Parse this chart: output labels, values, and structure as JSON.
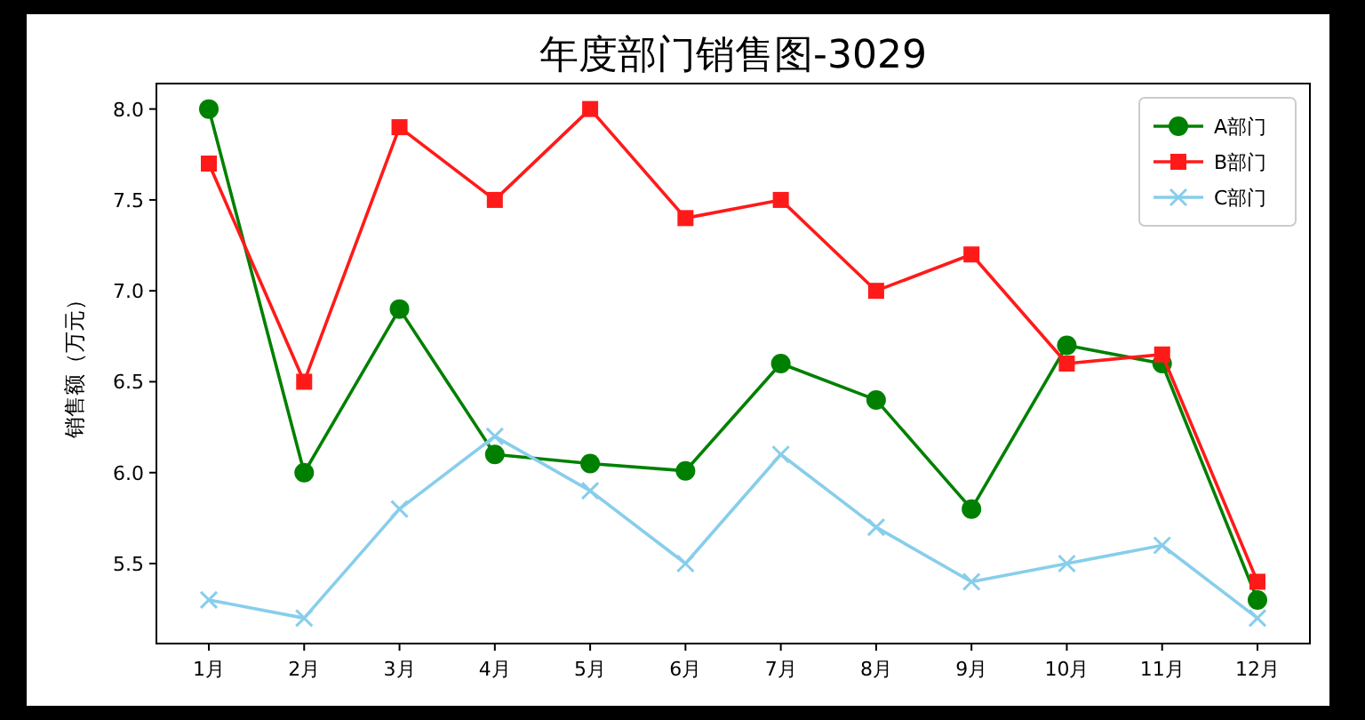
{
  "chart_data": {
    "type": "line",
    "title": "年度部门销售图-3029",
    "ylabel": "销售额（万元）",
    "categories": [
      "1月",
      "2月",
      "3月",
      "4月",
      "5月",
      "6月",
      "7月",
      "8月",
      "9月",
      "10月",
      "11月",
      "12月"
    ],
    "series": [
      {
        "name": "A部门",
        "color": "#008000",
        "marker": "circle",
        "values": [
          8.0,
          6.0,
          6.9,
          6.1,
          6.05,
          6.01,
          6.6,
          6.4,
          5.8,
          6.7,
          6.6,
          5.3
        ]
      },
      {
        "name": "B部门",
        "color": "#ff1a1a",
        "marker": "square",
        "values": [
          7.7,
          6.5,
          7.9,
          7.5,
          8.0,
          7.4,
          7.5,
          7.0,
          7.2,
          6.6,
          6.65,
          5.4
        ]
      },
      {
        "name": "C部门",
        "color": "#87ceeb",
        "marker": "cross",
        "values": [
          5.3,
          5.2,
          5.8,
          6.2,
          5.9,
          5.5,
          6.1,
          5.7,
          5.4,
          5.5,
          5.6,
          5.2
        ]
      }
    ],
    "ylim": [
      5.06,
      8.14
    ],
    "yticks": [
      {
        "value": 5.5,
        "label": "5.5"
      },
      {
        "value": 6,
        "label": "6.0"
      },
      {
        "value": 6.5,
        "label": "6.5"
      },
      {
        "value": 7,
        "label": "7.0"
      },
      {
        "value": 7.5,
        "label": "7.5"
      },
      {
        "value": 8,
        "label": "8.0"
      }
    ],
    "grid": false,
    "legend": "top right"
  }
}
